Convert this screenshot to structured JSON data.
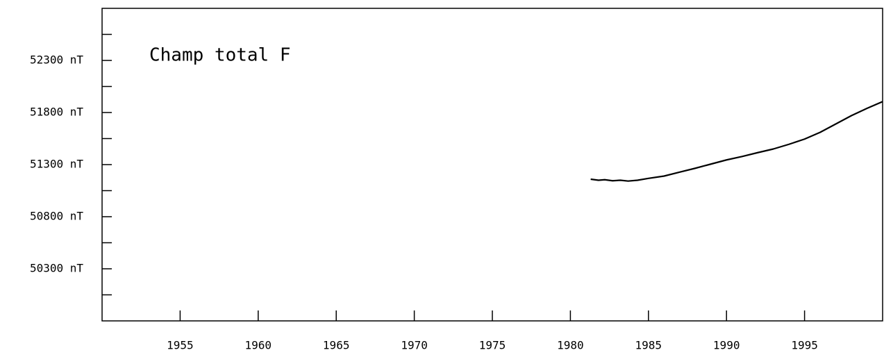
{
  "chart_data": {
    "type": "line",
    "title": "Champ total F",
    "x": [
      1981.3,
      1981.8,
      1982.2,
      1982.7,
      1983.2,
      1983.7,
      1984.3,
      1985,
      1986,
      1987,
      1988,
      1989,
      1990,
      1991,
      1992,
      1993,
      1994,
      1995,
      1996,
      1997,
      1998,
      1999,
      2000
    ],
    "series": [
      {
        "color": "#000000",
        "values": [
          51160,
          51150,
          51155,
          51145,
          51150,
          51142,
          51150,
          51168,
          51190,
          51228,
          51265,
          51305,
          51345,
          51378,
          51415,
          51450,
          51495,
          51545,
          51610,
          51690,
          51770,
          51840,
          51905
        ]
      }
    ],
    "xlim": [
      1950,
      2000
    ],
    "xticks": [
      1955,
      1960,
      1965,
      1970,
      1975,
      1980,
      1985,
      1990,
      1995
    ],
    "ylim": [
      49800,
      52800
    ],
    "yticks": [
      {
        "value": 50300,
        "label": "50300 nT"
      },
      {
        "value": 50800,
        "label": "50800 nT"
      },
      {
        "value": 51300,
        "label": "51300 nT"
      },
      {
        "value": 51800,
        "label": "51800 nT"
      },
      {
        "value": 52300,
        "label": "52300 nT"
      }
    ],
    "yticks_minor": [
      50050,
      50550,
      51050,
      51550,
      52050,
      52550
    ]
  }
}
